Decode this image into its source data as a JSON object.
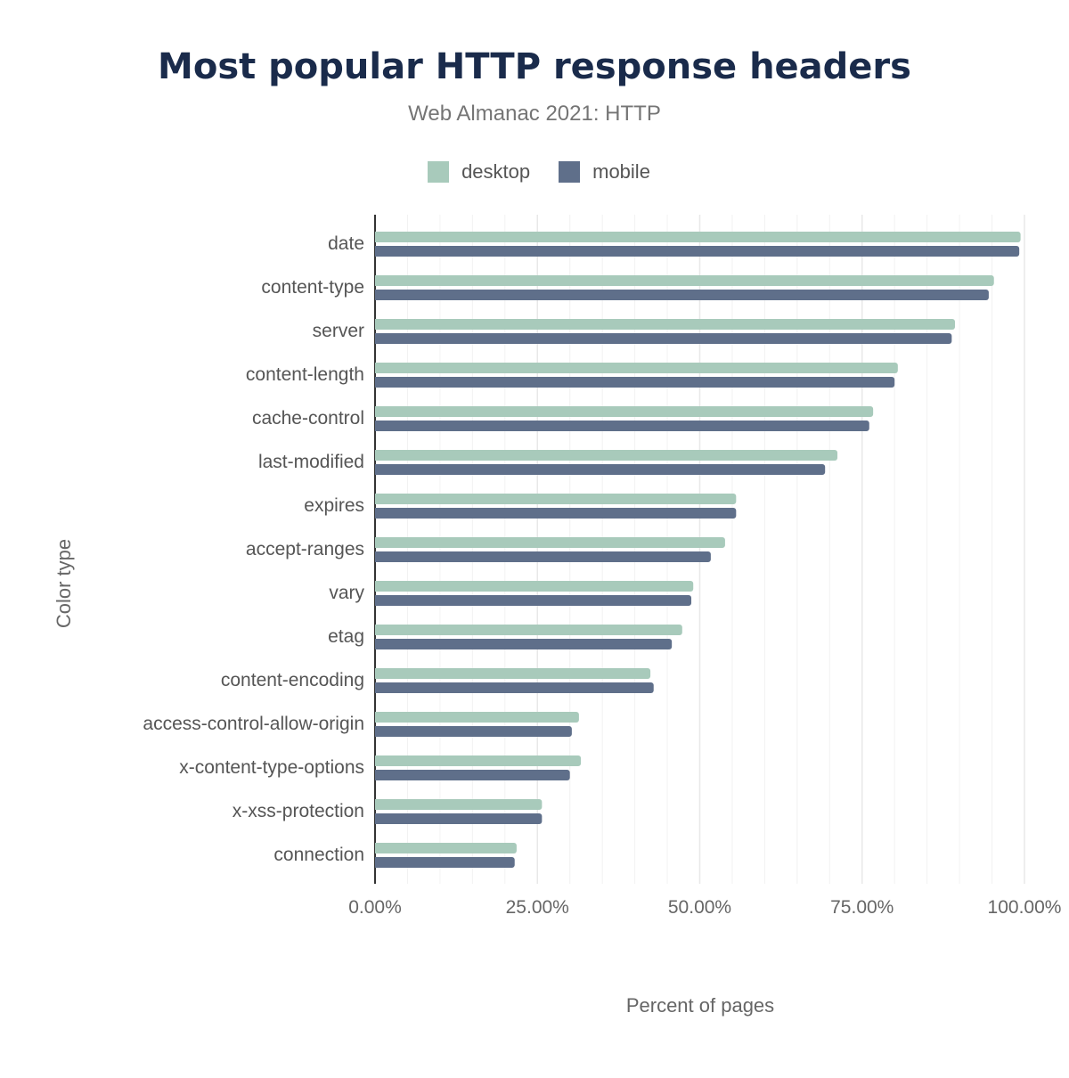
{
  "chart_data": {
    "type": "bar",
    "orientation": "horizontal",
    "title": "Most popular HTTP response headers",
    "subtitle": "Web Almanac 2021: HTTP",
    "xlabel": "Percent of pages",
    "ylabel": "Color type",
    "xlim": [
      0,
      100
    ],
    "xticks": [
      "0.00%",
      "25.00%",
      "50.00%",
      "75.00%",
      "100.00%"
    ],
    "grid": true,
    "legend_position": "top",
    "categories": [
      "date",
      "content-type",
      "server",
      "content-length",
      "cache-control",
      "last-modified",
      "expires",
      "accept-ranges",
      "vary",
      "etag",
      "content-encoding",
      "access-control-allow-origin",
      "x-content-type-options",
      "x-xss-protection",
      "connection"
    ],
    "series": [
      {
        "name": "desktop",
        "color": "#a8cabb",
        "values": [
          99.4,
          95.3,
          89.3,
          80.5,
          76.7,
          71.2,
          55.6,
          53.9,
          49.0,
          47.3,
          42.4,
          31.4,
          31.7,
          25.7,
          21.8
        ]
      },
      {
        "name": "mobile",
        "color": "#5f6f8a",
        "values": [
          99.2,
          94.5,
          88.8,
          80.0,
          76.1,
          69.3,
          55.6,
          51.7,
          48.7,
          45.7,
          42.9,
          30.3,
          30.0,
          25.7,
          21.5
        ]
      }
    ]
  }
}
